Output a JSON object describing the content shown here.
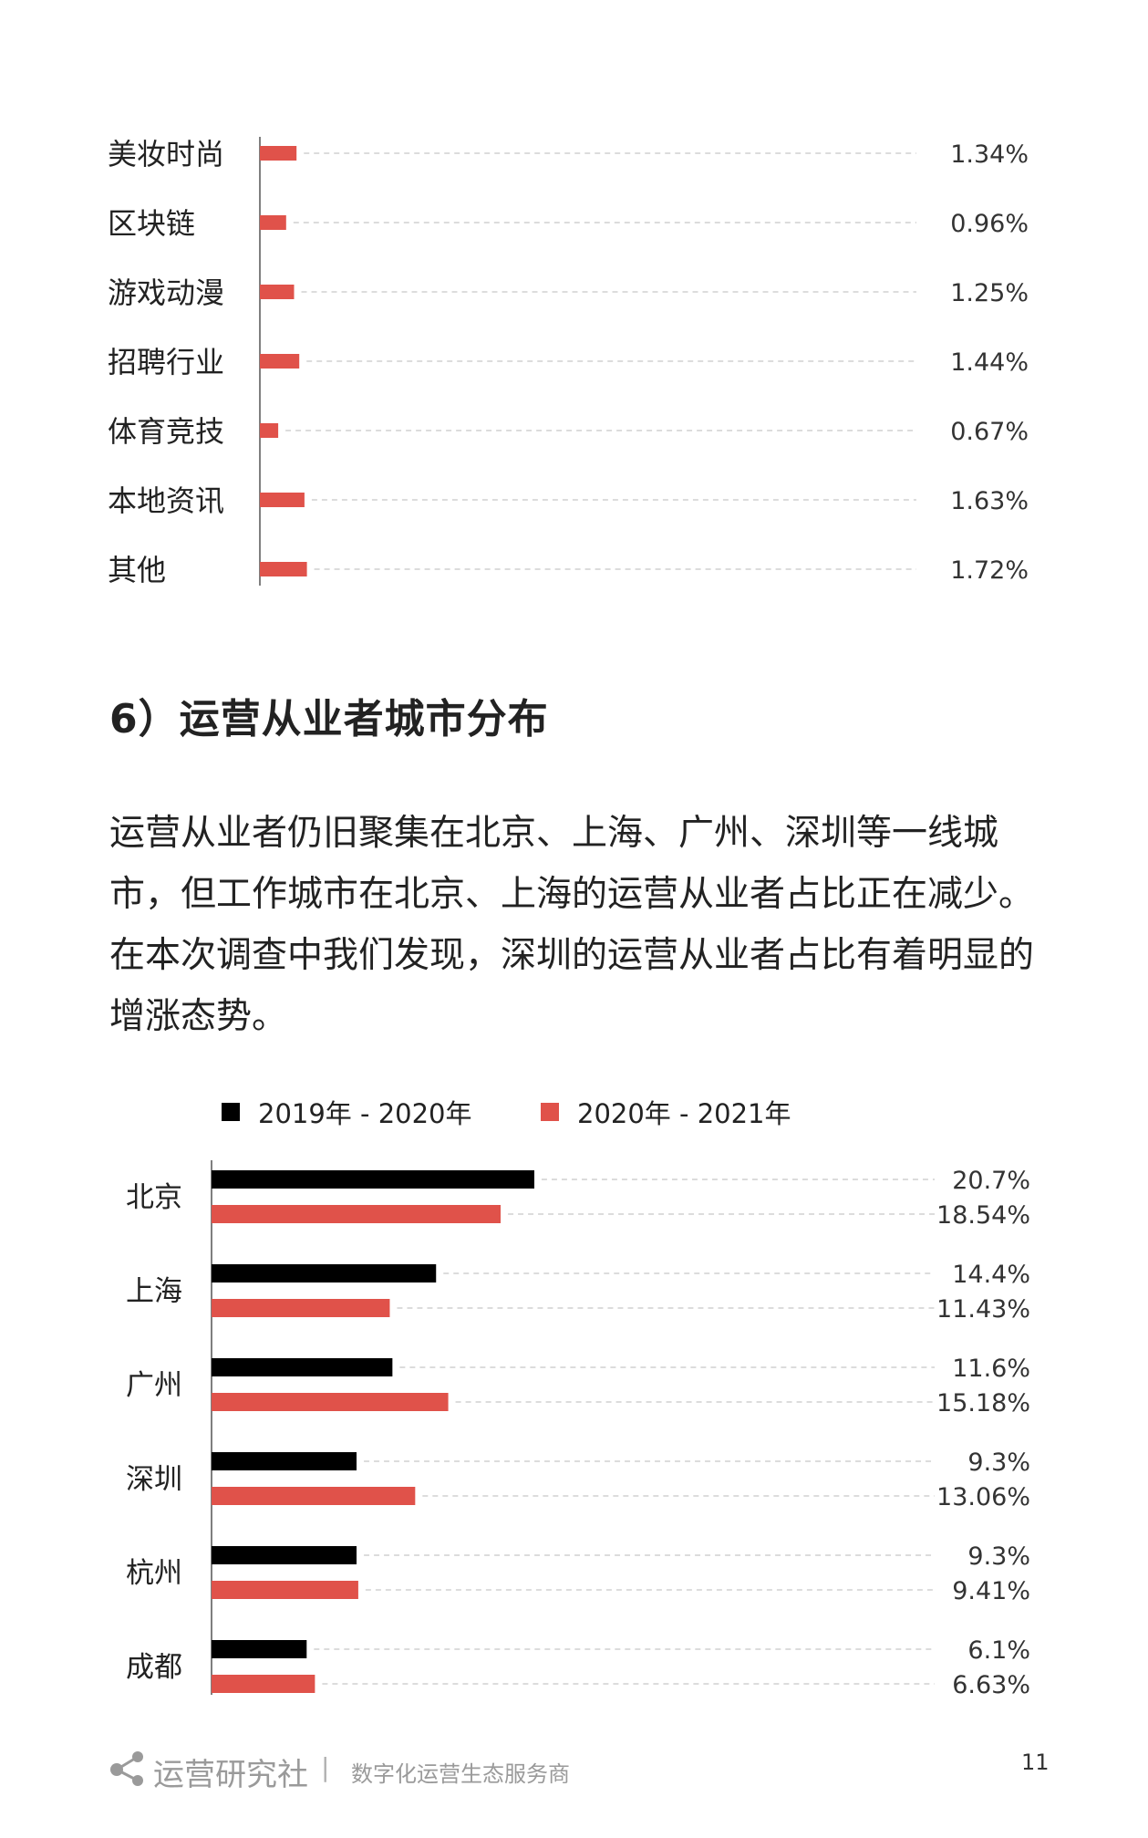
{
  "chart_data": [
    {
      "type": "bar",
      "orientation": "horizontal",
      "categories": [
        "美妆时尚",
        "区块链",
        "游戏动漫",
        "招聘行业",
        "体育竞技",
        "本地资讯",
        "其他"
      ],
      "values": [
        1.34,
        0.96,
        1.25,
        1.44,
        0.67,
        1.63,
        1.72
      ],
      "value_labels": [
        "1.34%",
        "0.96%",
        "1.25%",
        "1.44%",
        "0.67%",
        "1.63%",
        "1.72%"
      ],
      "bar_color": "#e0524a",
      "grid": false
    },
    {
      "type": "bar",
      "orientation": "horizontal",
      "categories": [
        "北京",
        "上海",
        "广州",
        "深圳",
        "杭州",
        "成都"
      ],
      "series": [
        {
          "name": "2019年 - 2020年",
          "color": "#000000",
          "values": [
            20.7,
            14.4,
            11.6,
            9.3,
            9.3,
            6.1
          ],
          "labels": [
            "20.7%",
            "14.4%",
            "11.6%",
            "9.3%",
            "9.3%",
            "6.1%"
          ]
        },
        {
          "name": "2020年 - 2021年",
          "color": "#e0524a",
          "values": [
            18.54,
            11.43,
            15.18,
            13.06,
            9.41,
            6.63
          ],
          "labels": [
            "18.54%",
            "11.43%",
            "15.18%",
            "13.06%",
            "9.41%",
            "6.63%"
          ]
        }
      ],
      "legend": "top",
      "grid": false
    }
  ],
  "section": {
    "heading": "6）运营从业者城市分布",
    "paragraph": "运营从业者仍旧聚集在北京、上海、广州、深圳等一线城市，但工作城市在北京、上海的运营从业者占比正在减少。在本次调查中我们发现，深圳的运营从业者占比有着明显的增涨态势。"
  },
  "footer": {
    "brand": "运营研究社",
    "separator": "|",
    "tagline": "数字化运营生态服务商",
    "page_number": "11",
    "logo_icon": "share-nodes-icon"
  }
}
